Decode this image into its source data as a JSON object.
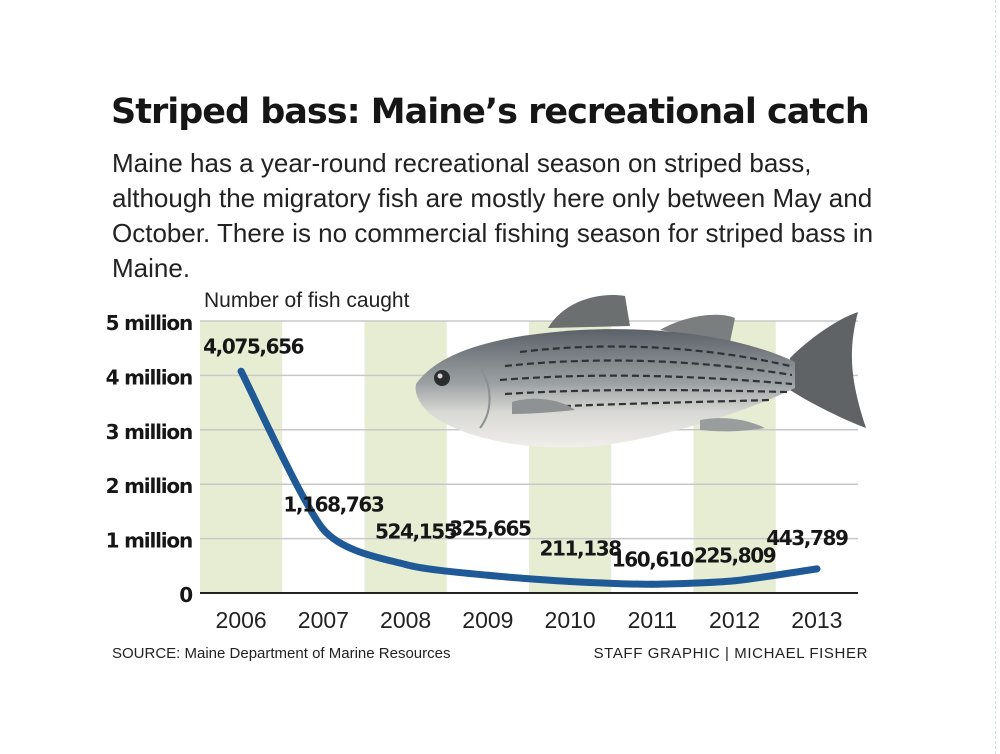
{
  "title": "Striped bass: Maine’s recreational catch",
  "subtitle": "Maine has a year-round recreational season on striped bass, although the migratory fish are mostly here only between May and October. There is no commercial fishing season for striped bass in Maine.",
  "source": "SOURCE: Maine Department of Marine Resources",
  "credit": "STAFF GRAPHIC | MICHAEL FISHER",
  "colors": {
    "line": "#1f5a97",
    "band": "#e6edd3",
    "grid": "#c8c8c8",
    "text": "#161616"
  },
  "illustration": "striped-bass-fish-photo",
  "chart_data": {
    "type": "line",
    "ylabel": "Number of fish caught",
    "x": [
      "2006",
      "2007",
      "2008",
      "2009",
      "2010",
      "2011",
      "2012",
      "2013"
    ],
    "values": [
      4075656,
      1168763,
      524155,
      325665,
      211138,
      160610,
      225809,
      443789
    ],
    "data_labels": [
      "4,075,656",
      "1,168,763",
      "524,155",
      "325,665",
      "211,138",
      "160,610",
      "225,809",
      "443,789"
    ],
    "yticks": [
      0,
      1000000,
      2000000,
      3000000,
      4000000,
      5000000
    ],
    "ytick_labels": [
      "0",
      "1 million",
      "2 million",
      "3 million",
      "4 million",
      "5 million"
    ],
    "ylim": [
      0,
      5000000
    ],
    "grid": true,
    "shaded_bands": [
      "2006",
      "2008",
      "2010",
      "2012"
    ]
  }
}
